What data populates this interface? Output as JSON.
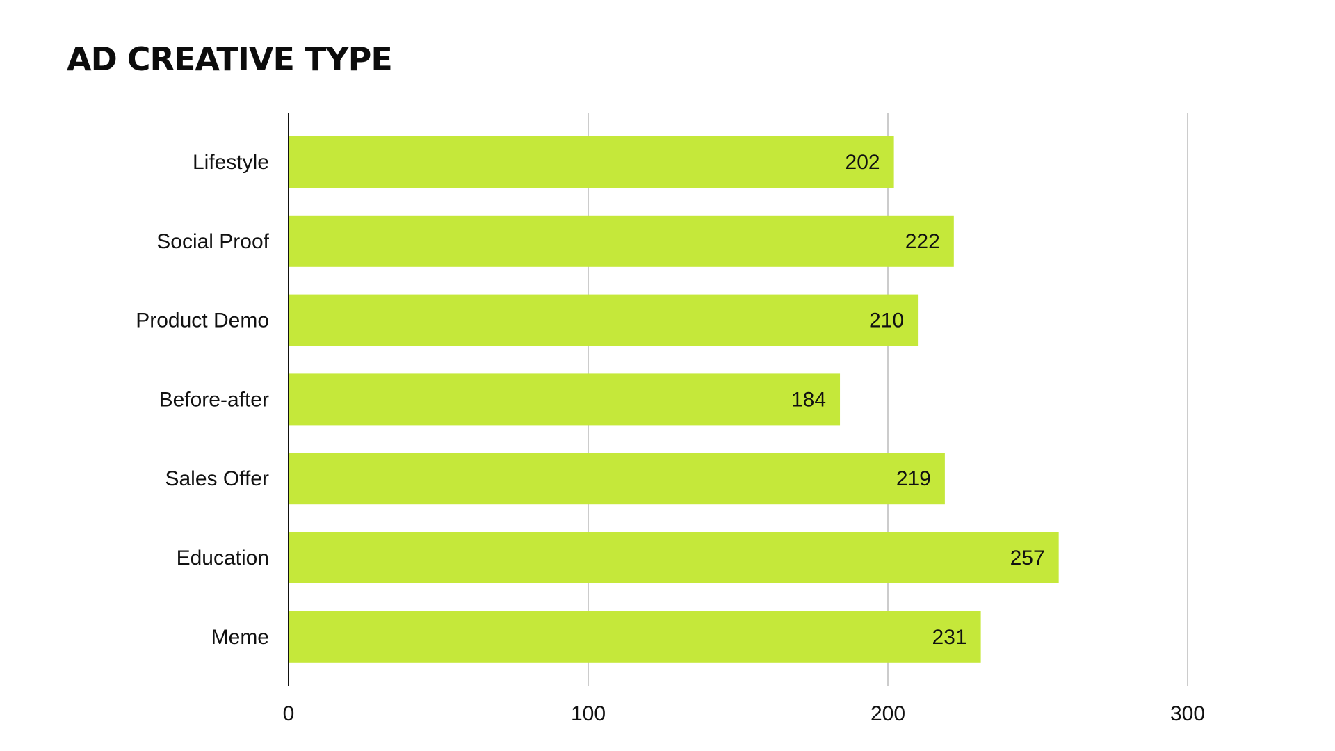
{
  "chart_data": {
    "type": "bar",
    "orientation": "horizontal",
    "title": "AD CREATIVE TYPE",
    "categories": [
      "Lifestyle",
      "Social Proof",
      "Product Demo",
      "Before-after",
      "Sales Offer",
      "Education",
      "Meme"
    ],
    "values": [
      202,
      222,
      210,
      184,
      219,
      257,
      231
    ],
    "xlabel": "",
    "ylabel": "",
    "xlim": [
      0,
      300
    ],
    "xticks": [
      0,
      100,
      200,
      300
    ],
    "grid": true,
    "legend": "none",
    "bar_color": "#c5e83a",
    "grid_color": "#cccccc",
    "axis_color": "#111111"
  }
}
